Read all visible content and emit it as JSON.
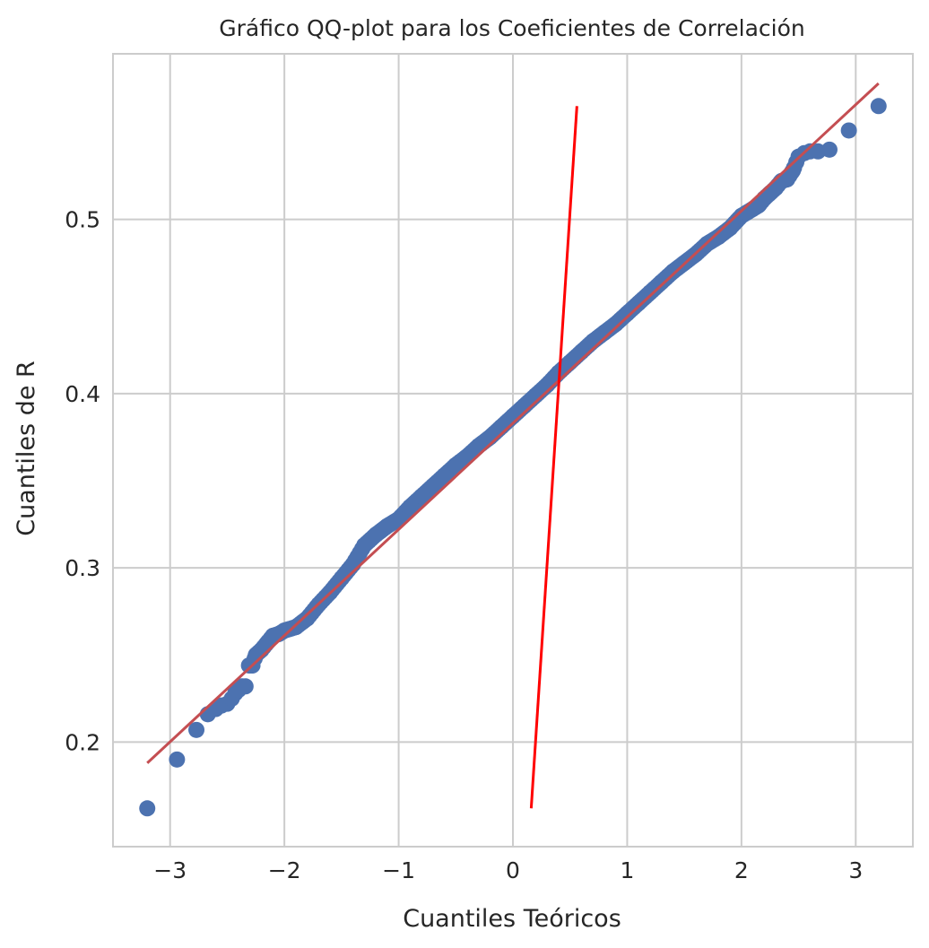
{
  "chart_data": {
    "type": "scatter",
    "title": "Gráfico QQ-plot para los Coeficientes de Correlación",
    "xlabel": "Cuantiles Teóricos",
    "ylabel": "Cuantiles de R",
    "xlim": [
      -3.5,
      3.5
    ],
    "ylim": [
      0.14,
      0.595
    ],
    "x_ticks": [
      -3,
      -2,
      -1,
      0,
      1,
      2,
      3
    ],
    "x_tick_labels": [
      "−3",
      "−2",
      "−1",
      "0",
      "1",
      "2",
      "3"
    ],
    "y_ticks": [
      0.2,
      0.3,
      0.4,
      0.5
    ],
    "y_tick_labels": [
      "0.2",
      "0.3",
      "0.4",
      "0.5"
    ],
    "grid": true,
    "legend": "none",
    "colors": {
      "points": "#4c72b0",
      "fit_line": "#c44e52",
      "extra_line": "#ff0000",
      "grid": "#cccccc",
      "spine": "#cccccc"
    },
    "series": [
      {
        "kind": "points",
        "x": [
          -3.2,
          -2.94,
          -2.77,
          -2.67,
          -2.6,
          -2.55,
          -2.5,
          -2.46,
          -2.43,
          -2.4,
          -2.37,
          -2.34,
          -2.31,
          -2.28,
          -2.25,
          -2.2,
          -2.15,
          -2.1,
          -2.05,
          -2.0,
          -1.9,
          -1.8,
          -1.7,
          -1.6,
          -1.5,
          -1.4,
          -1.3,
          -1.2,
          -1.1,
          -1.0,
          -0.9,
          -0.8,
          -0.7,
          -0.6,
          -0.5,
          -0.4,
          -0.3,
          -0.2,
          -0.1,
          0.0,
          0.1,
          0.2,
          0.3,
          0.4,
          0.5,
          0.6,
          0.7,
          0.8,
          0.9,
          1.0,
          1.1,
          1.2,
          1.3,
          1.4,
          1.5,
          1.6,
          1.7,
          1.8,
          1.9,
          2.0,
          2.05,
          2.1,
          2.15,
          2.2,
          2.25,
          2.3,
          2.35,
          2.4,
          2.45,
          2.5,
          2.55,
          2.6,
          2.67,
          2.77,
          2.94,
          3.2
        ],
        "y": [
          0.162,
          0.19,
          0.207,
          0.216,
          0.219,
          0.221,
          0.222,
          0.225,
          0.228,
          0.23,
          0.232,
          0.232,
          0.244,
          0.244,
          0.25,
          0.253,
          0.257,
          0.261,
          0.262,
          0.264,
          0.266,
          0.271,
          0.279,
          0.286,
          0.294,
          0.302,
          0.313,
          0.319,
          0.324,
          0.328,
          0.335,
          0.341,
          0.347,
          0.353,
          0.359,
          0.364,
          0.37,
          0.375,
          0.381,
          0.387,
          0.393,
          0.399,
          0.405,
          0.412,
          0.418,
          0.424,
          0.43,
          0.435,
          0.44,
          0.446,
          0.452,
          0.458,
          0.464,
          0.47,
          0.475,
          0.48,
          0.486,
          0.49,
          0.495,
          0.502,
          0.504,
          0.506,
          0.508,
          0.512,
          0.515,
          0.518,
          0.522,
          0.523,
          0.528,
          0.536,
          0.538,
          0.539,
          0.539,
          0.54,
          0.551,
          0.565
        ]
      },
      {
        "kind": "line",
        "role": "fit",
        "x": [
          -3.2,
          3.2
        ],
        "y": [
          0.188,
          0.578
        ]
      },
      {
        "kind": "line",
        "role": "extra",
        "x": [
          0.16,
          0.56
        ],
        "y": [
          0.162,
          0.565
        ]
      }
    ]
  }
}
